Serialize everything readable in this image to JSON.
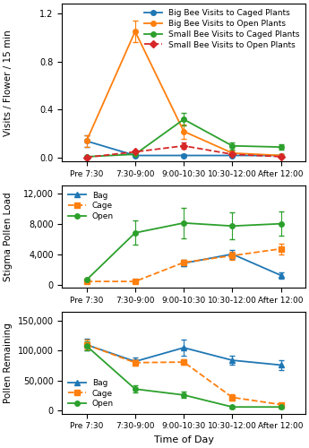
{
  "chart_data": [
    {
      "type": "line",
      "ylabel": "Visits / Flower / 15 min",
      "categories": [
        "Pre 7:30",
        "7:30-9:00",
        "9:00-10:30",
        "10:30-12:00",
        "After 12:00"
      ],
      "ylim": [
        -0.03,
        1.28
      ],
      "yticks": [
        0.0,
        0.4,
        0.8,
        1.2
      ],
      "legend": "upper right",
      "series": [
        {
          "name": "Big Bee Visits to Caged Plants",
          "marker": "circle",
          "line_style": "solid",
          "values": [
            0.14,
            0.02,
            0.02,
            0.02,
            0.02
          ],
          "errors": [
            0.05,
            0.01,
            0.01,
            0.01,
            0.01
          ]
        },
        {
          "name": "Big Bee Visits to Open Plants",
          "marker": "circle",
          "line_style": "solid",
          "values": [
            0.14,
            1.05,
            0.22,
            0.04,
            0.02
          ],
          "errors": [
            0.05,
            0.09,
            0.06,
            0.02,
            0.01
          ]
        },
        {
          "name": "Small Bee Visits to Caged Plants",
          "marker": "circle",
          "line_style": "solid",
          "values": [
            0.01,
            0.03,
            0.32,
            0.1,
            0.09
          ],
          "errors": [
            0.005,
            0.01,
            0.05,
            0.03,
            0.025
          ]
        },
        {
          "name": "Small Bee Visits to Open Plants",
          "marker": "diamond",
          "line_style": "dashed",
          "values": [
            0.005,
            0.05,
            0.1,
            0.03,
            0.01
          ],
          "errors": [
            0.003,
            0.01,
            0.025,
            0.015,
            0.005
          ]
        }
      ]
    },
    {
      "type": "line",
      "ylabel": "Stigma Pollen Load",
      "categories": [
        "Pre 7:30",
        "7:30-9:00",
        "9:00-10:30",
        "10:30-12:00",
        "After 12:00"
      ],
      "ylim": [
        -400,
        13000
      ],
      "yticks": [
        0,
        {
          "value": 4000,
          "label": "4,000"
        },
        {
          "value": 8000,
          "label": "8,000"
        },
        {
          "value": 12000,
          "label": "12,000"
        }
      ],
      "legend": "upper left",
      "series": [
        {
          "name": "Bag",
          "marker": "triangle",
          "line_style": "solid",
          "values": [
            null,
            null,
            2800,
            4000,
            1200
          ],
          "errors": [
            null,
            null,
            400,
            600,
            400
          ]
        },
        {
          "name": "Cage",
          "marker": "square",
          "line_style": "dashed",
          "values": [
            400,
            400,
            2900,
            3800,
            4700
          ],
          "errors": [
            150,
            150,
            350,
            500,
            700
          ]
        },
        {
          "name": "Open",
          "marker": "circle",
          "line_style": "solid",
          "values": [
            600,
            6800,
            8100,
            7700,
            8000
          ],
          "errors": [
            200,
            1600,
            2000,
            1800,
            1600
          ]
        }
      ]
    },
    {
      "type": "line",
      "ylabel": "Pollen Remaining",
      "xlabel": "Time of Day",
      "categories": [
        "Pre 7:30",
        "7:30-9:00",
        "9:00-10:30",
        "10:30-12:00",
        "After 12:00"
      ],
      "ylim": [
        -5000,
        165000
      ],
      "yticks": [
        0,
        {
          "value": 50000,
          "label": "50,000"
        },
        {
          "value": 100000,
          "label": "100,000"
        },
        {
          "value": 150000,
          "label": "150,000"
        }
      ],
      "legend": "lower left",
      "series": [
        {
          "name": "Bag",
          "marker": "triangle",
          "line_style": "solid",
          "values": [
            110000,
            82000,
            105000,
            84000,
            76000
          ],
          "errors": [
            10000,
            6000,
            14000,
            8000,
            8000
          ]
        },
        {
          "name": "Cage",
          "marker": "square",
          "line_style": "dashed",
          "values": [
            110000,
            80000,
            81000,
            22000,
            10000
          ],
          "errors": [
            8000,
            5000,
            5000,
            5000,
            3000
          ]
        },
        {
          "name": "Open",
          "marker": "circle",
          "line_style": "solid",
          "values": [
            108000,
            36000,
            26000,
            6000,
            6000
          ],
          "errors": [
            8000,
            6000,
            5000,
            2000,
            2000
          ]
        }
      ]
    }
  ]
}
